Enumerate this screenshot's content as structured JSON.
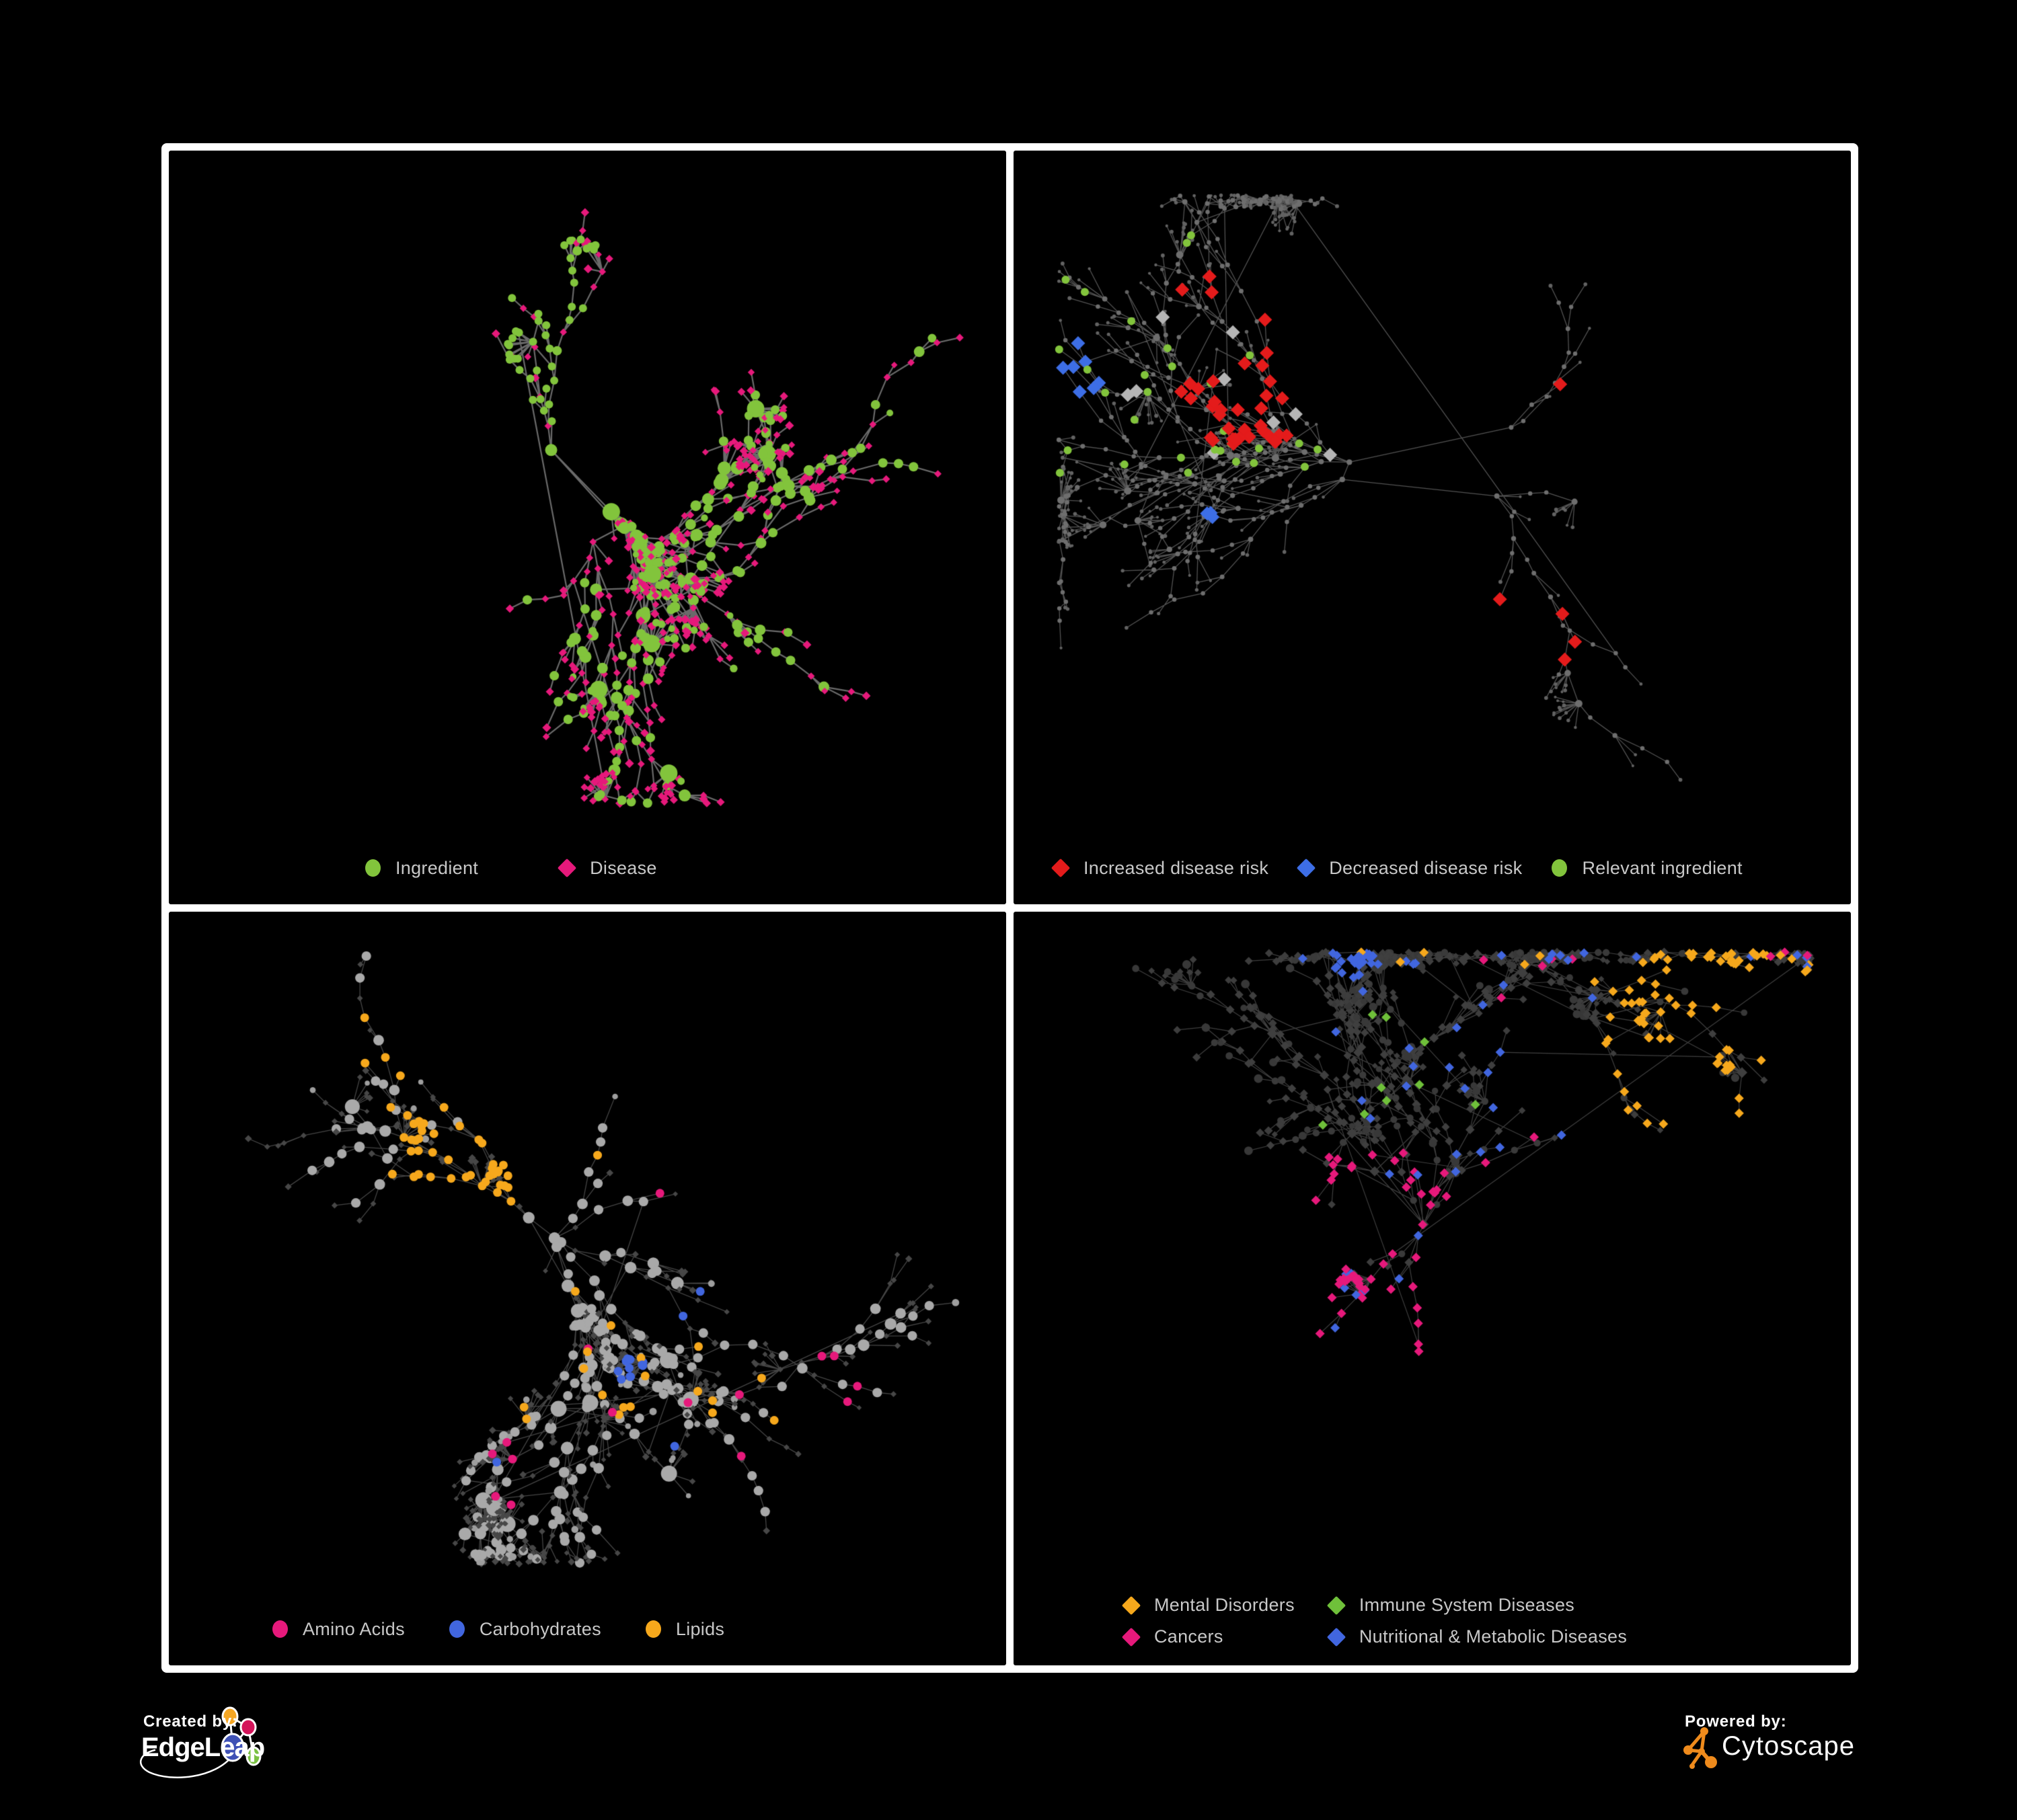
{
  "page": {
    "background": "#000000",
    "frame_color": "#ffffff",
    "legend_text_color": "#c8c8c8"
  },
  "panels": [
    {
      "id": "ingredient-disease-network",
      "legend": [
        {
          "label": "Ingredient",
          "shape": "circle",
          "color": "#82C43C"
        },
        {
          "label": "Disease",
          "shape": "diamond",
          "color": "#E6197B"
        }
      ],
      "net": {
        "seed": 9,
        "nodes": 500,
        "hubs": 4,
        "hubSpread": 130,
        "step": 32,
        "wander": 0.85,
        "bursts": 15,
        "burstMin": 6,
        "burstMax": 16,
        "burstR": 30,
        "tangles": 6,
        "tangleEdges": 10,
        "tangleR": 120,
        "longEdges": 5,
        "margin": 60,
        "bottomMargin": 150,
        "centerX": 0.47,
        "centerY": 0.45,
        "edge": {
          "color": "#858585",
          "width": 2.2,
          "alpha": 0.8
        },
        "base": {
          "internalShape": "circle",
          "internalColor": "#82C43C",
          "internalAltShape": "diamond",
          "internalAltColor": "#E6197B",
          "internalAltProb": 0.5,
          "leafShape": "diamond",
          "leafColor": "#E6197B",
          "leafAltShape": "circle",
          "leafAltColor": "#82C43C",
          "leafAltProb": 0.2,
          "rLeaf": 5.4,
          "rInternal": 5,
          "degScale": 1.0,
          "rHubMax": 13
        },
        "overlays": [
          {
            "shape": "circle",
            "color": "#82C43C",
            "count": 40,
            "r": 6,
            "mode": "cluster",
            "clusterR": 70,
            "region": [
              0.5,
              0.22,
              0.62,
              0.34
            ]
          }
        ]
      }
    },
    {
      "id": "disease-risk-network",
      "legend": [
        {
          "label": "Increased disease risk",
          "shape": "diamond",
          "color": "#E41B1B"
        },
        {
          "label": "Decreased disease risk",
          "shape": "diamond",
          "color": "#3D6EE6"
        },
        {
          "label": "Relevant ingredient",
          "shape": "circle",
          "color": "#82C43C"
        }
      ],
      "net": {
        "seed": 14,
        "nodes": 600,
        "hubs": 5,
        "hubSpread": 160,
        "step": 37,
        "wander": 0.95,
        "bursts": 18,
        "burstMin": 5,
        "burstMax": 14,
        "burstR": 33,
        "tangles": 6,
        "tangleEdges": 8,
        "tangleR": 120,
        "longEdges": 9,
        "margin": 65,
        "bottomMargin": 150,
        "centerX": 0.46,
        "centerY": 0.44,
        "edge": {
          "color": "#565656",
          "width": 1.3,
          "alpha": 0.95
        },
        "base": {
          "internalShape": "circle",
          "internalColor": "#6e6e6e",
          "internalAltShape": "circle",
          "internalAltColor": "#6e6e6e",
          "internalAltProb": 0,
          "leafShape": "circle",
          "leafColor": "#626262",
          "leafAltShape": "circle",
          "leafAltColor": "#626262",
          "leafAltProb": 0,
          "rLeaf": 2.4,
          "rInternal": 2.8,
          "degScale": 0.22,
          "rHubMax": 5.5
        },
        "overlays": [
          {
            "shape": "diamond",
            "color": "#E41B1B",
            "count": 38,
            "r": 10.5,
            "mode": "region",
            "region": [
              0.2,
              0.18,
              0.66,
              0.45
            ]
          },
          {
            "shape": "diamond",
            "color": "#E41B1B",
            "count": 4,
            "r": 10.5,
            "mode": "region",
            "region": [
              0.52,
              0.62,
              0.72,
              0.8
            ]
          },
          {
            "shape": "diamond",
            "color": "#3D6EE6",
            "count": 7,
            "r": 10.5,
            "mode": "cluster",
            "clusterR": 60,
            "region": [
              0.08,
              0.25,
              0.2,
              0.38
            ]
          },
          {
            "shape": "diamond",
            "color": "#3D6EE6",
            "count": 3,
            "r": 10.5,
            "mode": "cluster",
            "clusterR": 45,
            "region": [
              0.75,
              0.1,
              0.9,
              0.2
            ]
          },
          {
            "shape": "diamond",
            "color": "#b5b5b5",
            "count": 9,
            "r": 10.5,
            "mode": "region",
            "region": [
              0.08,
              0.18,
              0.58,
              0.48
            ]
          },
          {
            "shape": "circle",
            "color": "#82C43C",
            "count": 30,
            "r": 6,
            "mode": "region",
            "region": [
              0.05,
              0.12,
              0.6,
              0.5
            ]
          }
        ]
      }
    },
    {
      "id": "nutrient-class-network",
      "legend": [
        {
          "label": "Amino Acids",
          "shape": "circle",
          "color": "#E6197B"
        },
        {
          "label": "Carbohydrates",
          "shape": "circle",
          "color": "#4166DF"
        },
        {
          "label": "Lipids",
          "shape": "circle",
          "color": "#F6A81C"
        }
      ],
      "net": {
        "seed": 23,
        "nodes": 540,
        "hubs": 5,
        "hubSpread": 140,
        "step": 35,
        "wander": 0.9,
        "bursts": 16,
        "burstMin": 6,
        "burstMax": 18,
        "burstR": 32,
        "tangles": 10,
        "tangleEdges": 14,
        "tangleR": 115,
        "longEdges": 7,
        "margin": 60,
        "bottomMargin": 150,
        "centerX": 0.46,
        "centerY": 0.46,
        "edge": {
          "color": "#9a9a9a",
          "width": 1.3,
          "alpha": 0.45
        },
        "base": {
          "internalShape": "circle",
          "internalColor": "#a9a9a9",
          "internalAltShape": "diamond",
          "internalAltColor": "#474747",
          "internalAltProb": 0.3,
          "leafShape": "diamond",
          "leafColor": "#474747",
          "leafAltShape": "circle",
          "leafAltColor": "#9e9e9e",
          "leafAltProb": 0.12,
          "rLeaf": 4.4,
          "rInternal": 5.5,
          "degScale": 0.8,
          "rHubMax": 12
        },
        "overlays": [
          {
            "shape": "circle",
            "color": "#F6A81C",
            "count": 38,
            "r": 6.5,
            "mode": "cluster",
            "clusterR": 105,
            "region": [
              0.32,
              0.18,
              0.46,
              0.3
            ]
          },
          {
            "shape": "circle",
            "color": "#F6A81C",
            "count": 28,
            "r": 6.5,
            "mode": "region",
            "region": [
              0.08,
              0.12,
              0.8,
              0.78
            ]
          },
          {
            "shape": "circle",
            "color": "#4166DF",
            "count": 11,
            "r": 6.5,
            "mode": "cluster",
            "clusterR": 55,
            "region": [
              0.44,
              0.2,
              0.54,
              0.3
            ]
          },
          {
            "shape": "circle",
            "color": "#4166DF",
            "count": 4,
            "r": 6.5,
            "mode": "region",
            "region": [
              0.05,
              0.08,
              0.95,
              0.85
            ]
          },
          {
            "shape": "circle",
            "color": "#E6197B",
            "count": 15,
            "r": 6.5,
            "mode": "region",
            "region": [
              0.05,
              0.3,
              0.95,
              0.92
            ]
          },
          {
            "shape": "circle",
            "color": "#E6197B",
            "count": 3,
            "r": 6.5,
            "mode": "region",
            "region": [
              0.3,
              0.0,
              0.95,
              0.12
            ]
          }
        ]
      }
    },
    {
      "id": "disease-class-network",
      "legend": [
        {
          "label": "Mental Disorders",
          "shape": "diamond",
          "color": "#F6A81C"
        },
        {
          "label": "Immune System Diseases",
          "shape": "diamond",
          "color": "#6FC03A"
        },
        {
          "label": "Cancers",
          "shape": "diamond",
          "color": "#E6197B"
        },
        {
          "label": "Nutritional & Metabolic Diseases",
          "shape": "diamond",
          "color": "#4166DF"
        }
      ],
      "net": {
        "seed": 31,
        "nodes": 660,
        "hubs": 6,
        "hubSpread": 150,
        "step": 34,
        "wander": 0.92,
        "bursts": 18,
        "burstMin": 6,
        "burstMax": 16,
        "burstR": 30,
        "tangles": 10,
        "tangleEdges": 12,
        "tangleR": 110,
        "longEdges": 9,
        "margin": 60,
        "bottomMargin": 160,
        "centerX": 0.49,
        "centerY": 0.45,
        "edge": {
          "color": "#7d7d7d",
          "width": 1.2,
          "alpha": 0.5
        },
        "base": {
          "internalShape": "diamond",
          "internalColor": "#3f3f3f",
          "internalAltShape": "circle",
          "internalAltColor": "#3a3a3a",
          "internalAltProb": 0.35,
          "leafShape": "diamond",
          "leafColor": "#3d3d3d",
          "leafAltShape": "circle",
          "leafAltColor": "#383838",
          "leafAltProb": 0.28,
          "rLeaf": 5.2,
          "rInternal": 5.4,
          "degScale": 0.35,
          "rHubMax": 8
        },
        "overlays": [
          {
            "shape": "diamond",
            "color": "#F6A81C",
            "count": 78,
            "r": 7,
            "mode": "cluster",
            "clusterR": 125,
            "region": [
              0.1,
              0.33,
              0.26,
              0.52
            ]
          },
          {
            "shape": "diamond",
            "color": "#F6A81C",
            "count": 9,
            "r": 7,
            "mode": "region",
            "region": [
              0.05,
              0.02,
              0.95,
              0.9
            ]
          },
          {
            "shape": "diamond",
            "color": "#E6197B",
            "count": 52,
            "r": 7,
            "mode": "cluster",
            "clusterR": 130,
            "region": [
              0.36,
              0.42,
              0.52,
              0.58
            ]
          },
          {
            "shape": "diamond",
            "color": "#E6197B",
            "count": 10,
            "r": 7,
            "mode": "region",
            "region": [
              0.55,
              0.05,
              0.97,
              0.95
            ]
          },
          {
            "shape": "diamond",
            "color": "#4166DF",
            "count": 26,
            "r": 7,
            "mode": "cluster",
            "clusterR": 85,
            "region": [
              0.55,
              0.5,
              0.68,
              0.62
            ]
          },
          {
            "shape": "diamond",
            "color": "#4166DF",
            "count": 40,
            "r": 7,
            "mode": "region",
            "region": [
              0.3,
              0.02,
              0.98,
              0.55
            ]
          },
          {
            "shape": "diamond",
            "color": "#4166DF",
            "count": 8,
            "r": 7,
            "mode": "region",
            "region": [
              0.05,
              0.55,
              0.5,
              0.9
            ]
          },
          {
            "shape": "diamond",
            "color": "#6FC03A",
            "count": 9,
            "r": 7,
            "mode": "region",
            "region": [
              0.1,
              0.15,
              0.7,
              0.6
            ]
          }
        ]
      }
    }
  ],
  "footer": {
    "created_by_label": "Created by:",
    "created_by_brand": "EdgeLeap",
    "powered_by_label": "Powered by:",
    "powered_by_brand": "Cytoscape",
    "edgeleap_node_colors": [
      "#F5A623",
      "#D4145A",
      "#3F51B5",
      "#7AC143"
    ],
    "cytoscape_color": "#EF8B1C"
  }
}
